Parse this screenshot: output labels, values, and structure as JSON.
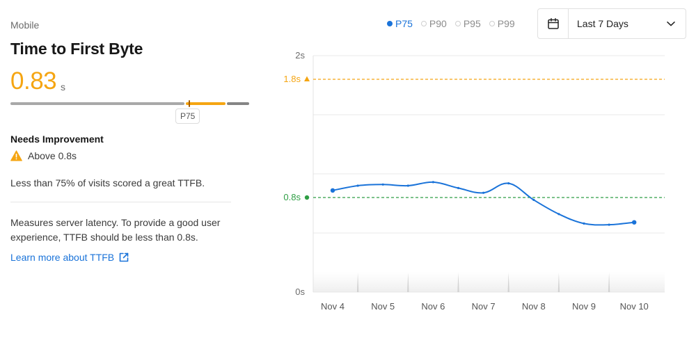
{
  "panel": {
    "device": "Mobile",
    "metric_title": "Time to First Byte",
    "value": "0.83",
    "unit": "s",
    "p75_tag": "P75",
    "status": "Needs Improvement",
    "threshold_text": "Above 0.8s",
    "summary": "Less than 75% of visits scored a great TTFB.",
    "description": "Measures server latency. To provide a good user experience, TTFB should be less than 0.8s.",
    "learn_more": "Learn more about TTFB"
  },
  "legend": {
    "items": [
      {
        "label": "P75",
        "active": true
      },
      {
        "label": "P90",
        "active": false
      },
      {
        "label": "P95",
        "active": false
      },
      {
        "label": "P99",
        "active": false
      }
    ]
  },
  "date_range": {
    "label": "Last 7 Days"
  },
  "colors": {
    "accent": "#1a73d9",
    "warning": "#f5a512",
    "good": "#2e9e44"
  },
  "icons": {
    "warning": "warning-triangle-icon",
    "external": "external-link-icon",
    "calendar": "calendar-icon",
    "dropdown": "chevron-down-icon"
  },
  "chart_data": {
    "type": "line",
    "categories": [
      "Nov 4",
      "Nov 5",
      "Nov 6",
      "Nov 7",
      "Nov 8",
      "Nov 9",
      "Nov 10"
    ],
    "x": [
      0,
      0.5,
      1,
      1.5,
      2,
      2.5,
      3,
      3.5,
      4,
      4.5,
      5,
      5.5,
      6
    ],
    "series": [
      {
        "name": "P75",
        "values": [
          0.86,
          0.9,
          0.91,
          0.9,
          0.93,
          0.88,
          0.84,
          0.92,
          0.78,
          0.66,
          0.58,
          0.57,
          0.59
        ]
      }
    ],
    "ylim": [
      0,
      2
    ],
    "yticks": [
      {
        "value": 0,
        "label": "0s"
      },
      {
        "value": 2,
        "label": "2s"
      }
    ],
    "thresholds": [
      {
        "value": 1.8,
        "label": "1.8s",
        "color": "#f5a512",
        "marker": "triangle"
      },
      {
        "value": 0.8,
        "label": "0.8s",
        "color": "#2e9e44",
        "marker": "circle"
      }
    ],
    "grid": true,
    "legend_position": "top"
  }
}
